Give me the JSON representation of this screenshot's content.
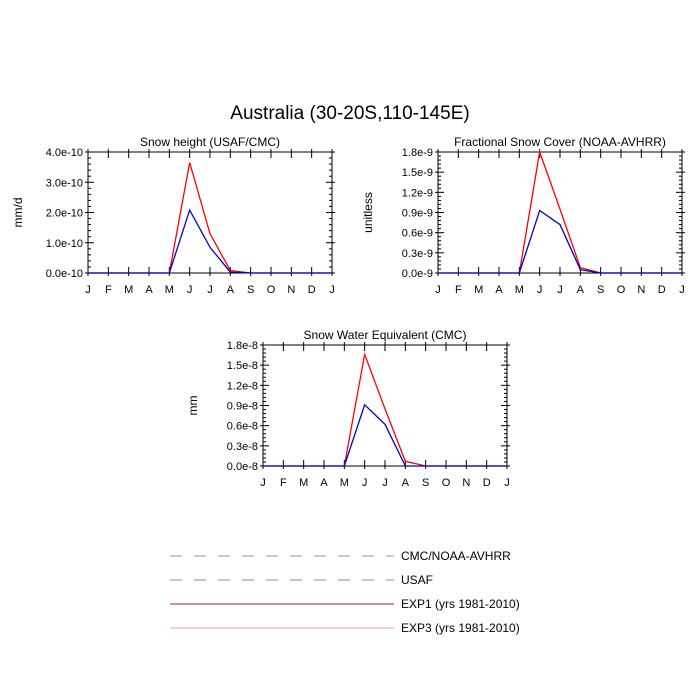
{
  "figure": {
    "title": "Australia (30-20S,110-145E)"
  },
  "legend": [
    {
      "label": "CMC/NOAA-AVHRR",
      "color": "#9a9a9a",
      "dashed": true
    },
    {
      "label": "USAF",
      "color": "#8a8aa6",
      "dashed": true
    },
    {
      "label": "EXP1 (yrs 1981-2010)",
      "color": "#b01c1c",
      "dashed": false
    },
    {
      "label": "EXP3 (yrs 1981-2010)",
      "color": "#ff9a9a",
      "dashed": false
    }
  ],
  "chart_data": [
    {
      "type": "line",
      "title": "Snow height (USAF/CMC)",
      "xlabel": "",
      "ylabel": "mm/d",
      "x": [
        "J",
        "F",
        "M",
        "A",
        "M",
        "J",
        "J",
        "A",
        "S",
        "O",
        "N",
        "D",
        "J"
      ],
      "ylim": [
        0,
        4e-10
      ],
      "yticks": [
        "0.0e-10",
        "1.0e-10",
        "2.0e-10",
        "3.0e-10",
        "4.0e-10"
      ],
      "series": [
        {
          "color": "#ff0000",
          "values": [
            0,
            0,
            0,
            0,
            0,
            3.65e-10,
            1.3e-10,
            8e-12,
            0,
            0,
            0,
            0,
            0
          ]
        },
        {
          "color": "#0000cc",
          "values": [
            0,
            0,
            0,
            0,
            0,
            2.08e-10,
            8.5e-11,
            3e-12,
            0,
            0,
            0,
            0,
            0
          ]
        }
      ]
    },
    {
      "type": "line",
      "title": "Fractional Snow Cover (NOAA-AVHRR)",
      "xlabel": "",
      "ylabel": "unitless",
      "x": [
        "J",
        "F",
        "M",
        "A",
        "M",
        "J",
        "J",
        "A",
        "S",
        "O",
        "N",
        "D",
        "J"
      ],
      "ylim": [
        0,
        1.8e-09
      ],
      "yticks": [
        "0.0e-9",
        "0.3e-9",
        "0.6e-9",
        "0.9e-9",
        "1.2e-9",
        "1.5e-9",
        "1.8e-9"
      ],
      "series": [
        {
          "color": "#ff0000",
          "values": [
            0,
            0,
            0,
            0,
            0,
            1.8e-09,
            9.5e-10,
            8e-11,
            0,
            0,
            0,
            0,
            0
          ]
        },
        {
          "color": "#0000cc",
          "values": [
            0,
            0,
            0,
            0,
            0,
            9.3e-10,
            7.2e-10,
            5e-11,
            0,
            0,
            0,
            0,
            0
          ]
        }
      ]
    },
    {
      "type": "line",
      "title": "Snow Water Equivalent (CMC)",
      "xlabel": "",
      "ylabel": "mm",
      "x": [
        "J",
        "F",
        "M",
        "A",
        "M",
        "J",
        "J",
        "A",
        "S",
        "O",
        "N",
        "D",
        "J"
      ],
      "ylim": [
        0,
        1.8e-08
      ],
      "yticks": [
        "0.0e-8",
        "0.3e-8",
        "0.6e-8",
        "0.9e-8",
        "1.2e-8",
        "1.5e-8",
        "1.8e-8"
      ],
      "series": [
        {
          "color": "#ff0000",
          "values": [
            0,
            0,
            0,
            0,
            0,
            1.66e-08,
            8.5e-09,
            7e-10,
            0,
            0,
            0,
            0,
            0
          ]
        },
        {
          "color": "#0000cc",
          "values": [
            0,
            0,
            0,
            0,
            0,
            9.1e-09,
            6.2e-09,
            0,
            0,
            0,
            0,
            0,
            0
          ]
        }
      ]
    }
  ]
}
